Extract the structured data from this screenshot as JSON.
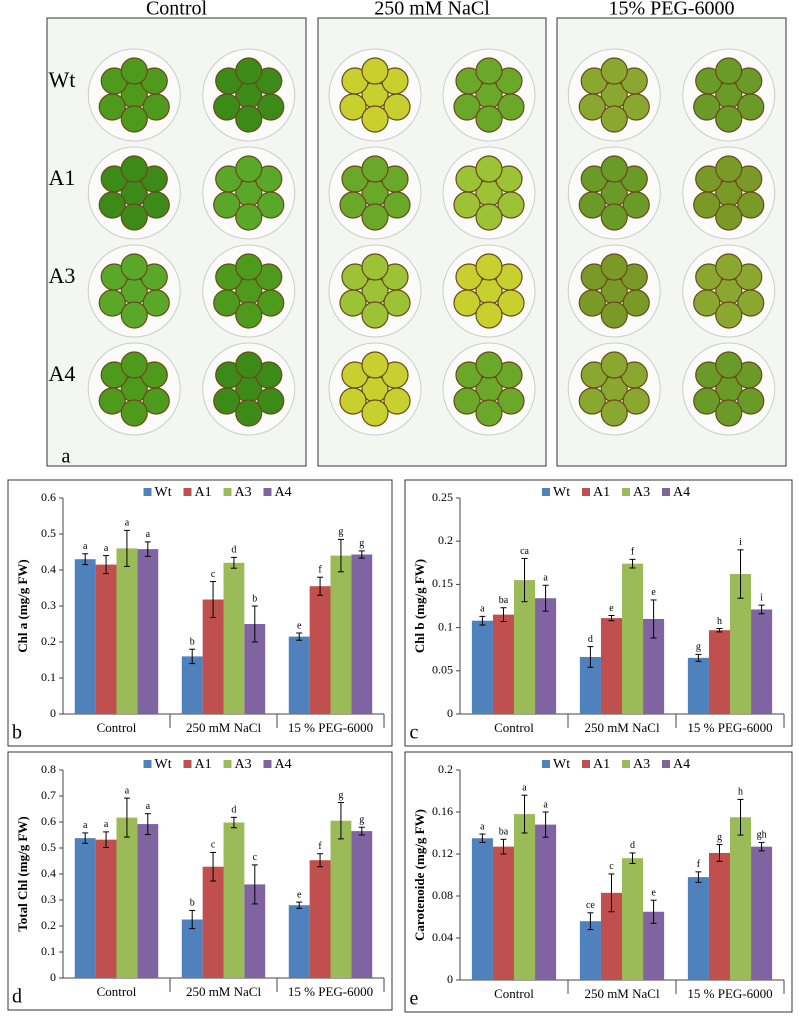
{
  "photo": {
    "columns": [
      "Control",
      "250 mM NaCl",
      "15% PEG-6000"
    ],
    "rows": [
      "Wt",
      "A1",
      "A3",
      "A4"
    ],
    "panel": "a"
  },
  "chart_data": [
    {
      "type": "bar",
      "panel": "b",
      "ylabel": "Chl a (mg/g FW)",
      "categories": [
        "Control",
        "250 mM NaCl",
        "15 % PEG-6000"
      ],
      "ylim": [
        0,
        0.6
      ],
      "yticks": [
        0,
        0.1,
        0.2,
        0.3,
        0.4,
        0.5,
        0.6
      ],
      "series": [
        {
          "name": "Wt",
          "color": "#4f81bd",
          "values": [
            0.43,
            0.16,
            0.215
          ],
          "errors": [
            0.015,
            0.02,
            0.01
          ],
          "letters": [
            "a",
            "b",
            "e"
          ]
        },
        {
          "name": "A1",
          "color": "#c0504d",
          "values": [
            0.415,
            0.318,
            0.355
          ],
          "errors": [
            0.025,
            0.05,
            0.025
          ],
          "letters": [
            "a",
            "c",
            "f"
          ]
        },
        {
          "name": "A3",
          "color": "#9bbb59",
          "values": [
            0.46,
            0.42,
            0.44
          ],
          "errors": [
            0.05,
            0.015,
            0.045
          ],
          "letters": [
            "a",
            "d",
            "g"
          ]
        },
        {
          "name": "A4",
          "color": "#8064a2",
          "values": [
            0.458,
            0.25,
            0.443
          ],
          "errors": [
            0.02,
            0.05,
            0.01
          ],
          "letters": [
            "a",
            "b",
            "g"
          ]
        }
      ]
    },
    {
      "type": "bar",
      "panel": "c",
      "ylabel": "Chl b (mg/g FW)",
      "categories": [
        "Control",
        "250 mM NaCl",
        "15 % PEG-6000"
      ],
      "ylim": [
        0,
        0.25
      ],
      "yticks": [
        0,
        0.05,
        0.1,
        0.15,
        0.2,
        0.25
      ],
      "series": [
        {
          "name": "Wt",
          "color": "#4f81bd",
          "values": [
            0.108,
            0.066,
            0.065
          ],
          "errors": [
            0.005,
            0.012,
            0.004
          ],
          "letters": [
            "a",
            "d",
            "g"
          ]
        },
        {
          "name": "A1",
          "color": "#c0504d",
          "values": [
            0.115,
            0.111,
            0.097
          ],
          "errors": [
            0.008,
            0.003,
            0.002
          ],
          "letters": [
            "ba",
            "e",
            "h"
          ]
        },
        {
          "name": "A3",
          "color": "#9bbb59",
          "values": [
            0.155,
            0.174,
            0.162
          ],
          "errors": [
            0.025,
            0.005,
            0.028
          ],
          "letters": [
            "ca",
            "f",
            "i"
          ]
        },
        {
          "name": "A4",
          "color": "#8064a2",
          "values": [
            0.134,
            0.11,
            0.121
          ],
          "errors": [
            0.015,
            0.022,
            0.005
          ],
          "letters": [
            "a",
            "e",
            "i"
          ]
        }
      ]
    },
    {
      "type": "bar",
      "panel": "d",
      "ylabel": "Total Chl (mg/g FW)",
      "categories": [
        "Control",
        "250 mM NaCl",
        "15 % PEG-6000"
      ],
      "ylim": [
        0,
        0.8
      ],
      "yticks": [
        0,
        0.1,
        0.2,
        0.3,
        0.4,
        0.5,
        0.6,
        0.7,
        0.8
      ],
      "series": [
        {
          "name": "Wt",
          "color": "#4f81bd",
          "values": [
            0.538,
            0.225,
            0.28
          ],
          "errors": [
            0.02,
            0.035,
            0.012
          ],
          "letters": [
            "a",
            "b",
            "e"
          ]
        },
        {
          "name": "A1",
          "color": "#c0504d",
          "values": [
            0.532,
            0.428,
            0.453
          ],
          "errors": [
            0.03,
            0.055,
            0.025
          ],
          "letters": [
            "a",
            "c",
            "f"
          ]
        },
        {
          "name": "A3",
          "color": "#9bbb59",
          "values": [
            0.617,
            0.598,
            0.605
          ],
          "errors": [
            0.075,
            0.02,
            0.07
          ],
          "letters": [
            "a",
            "d",
            "g"
          ]
        },
        {
          "name": "A4",
          "color": "#8064a2",
          "values": [
            0.592,
            0.36,
            0.565
          ],
          "errors": [
            0.04,
            0.075,
            0.015
          ],
          "letters": [
            "a",
            "c",
            "g"
          ]
        }
      ]
    },
    {
      "type": "bar",
      "panel": "e",
      "ylabel": "Carotenoide (mg/g FW)",
      "categories": [
        "Control",
        "250 mM NaCl",
        "15 % PEG-6000"
      ],
      "ylim": [
        0,
        0.2
      ],
      "yticks": [
        0,
        0.04,
        0.08,
        0.12,
        0.16,
        0.2
      ],
      "series": [
        {
          "name": "Wt",
          "color": "#4f81bd",
          "values": [
            0.135,
            0.056,
            0.098
          ],
          "errors": [
            0.004,
            0.008,
            0.005
          ],
          "letters": [
            "a",
            "ce",
            "f"
          ]
        },
        {
          "name": "A1",
          "color": "#c0504d",
          "values": [
            0.127,
            0.083,
            0.121
          ],
          "errors": [
            0.007,
            0.018,
            0.008
          ],
          "letters": [
            "ba",
            "c",
            "g"
          ]
        },
        {
          "name": "A3",
          "color": "#9bbb59",
          "values": [
            0.158,
            0.116,
            0.155
          ],
          "errors": [
            0.018,
            0.005,
            0.017
          ],
          "letters": [
            "a",
            "d",
            "h"
          ]
        },
        {
          "name": "A4",
          "color": "#8064a2",
          "values": [
            0.148,
            0.065,
            0.127
          ],
          "errors": [
            0.012,
            0.011,
            0.004
          ],
          "letters": [
            "a",
            "e",
            "gh"
          ]
        }
      ]
    }
  ]
}
